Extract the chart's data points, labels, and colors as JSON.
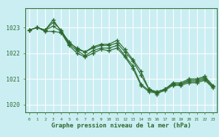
{
  "background_color": "#cbeef3",
  "grid_color": "#ffffff",
  "line_color": "#2d6a2d",
  "marker_color": "#2d6a2d",
  "title": "Graphe pression niveau de la mer (hPa)",
  "xlim": [
    -0.5,
    23.5
  ],
  "ylim": [
    1019.7,
    1023.75
  ],
  "yticks": [
    1020,
    1021,
    1022,
    1023
  ],
  "xticks": [
    0,
    1,
    2,
    3,
    4,
    5,
    6,
    7,
    8,
    9,
    10,
    11,
    12,
    13,
    14,
    15,
    16,
    17,
    18,
    19,
    20,
    21,
    22,
    23
  ],
  "series": [
    [
      1022.9,
      1023.0,
      1022.9,
      1023.2,
      1022.9,
      1022.4,
      1022.2,
      1022.05,
      1022.2,
      1022.3,
      1022.3,
      1022.4,
      1022.05,
      1021.7,
      1021.15,
      1020.6,
      1020.5,
      1020.6,
      1020.85,
      1020.85,
      1021.0,
      1021.0,
      1021.1,
      1020.75
    ],
    [
      1022.9,
      1023.0,
      1022.9,
      1023.3,
      1022.85,
      1022.45,
      1022.15,
      1022.05,
      1022.25,
      1022.35,
      1022.35,
      1022.5,
      1022.15,
      1021.75,
      1021.3,
      1020.6,
      1020.4,
      1020.6,
      1020.8,
      1020.8,
      1020.95,
      1020.95,
      1021.05,
      1020.7
    ],
    [
      1022.9,
      1023.0,
      1022.9,
      1023.05,
      1022.85,
      1022.35,
      1022.1,
      1021.9,
      1022.1,
      1022.2,
      1022.2,
      1022.3,
      1021.9,
      1021.5,
      1020.8,
      1020.55,
      1020.5,
      1020.6,
      1020.8,
      1020.8,
      1020.9,
      1020.9,
      1021.0,
      1020.7
    ],
    [
      1022.9,
      1023.0,
      1022.85,
      1022.85,
      1022.8,
      1022.3,
      1022.0,
      1021.85,
      1022.0,
      1022.15,
      1022.1,
      1022.2,
      1021.85,
      1021.4,
      1020.75,
      1020.5,
      1020.45,
      1020.55,
      1020.75,
      1020.75,
      1020.85,
      1020.85,
      1020.95,
      1020.65
    ]
  ]
}
